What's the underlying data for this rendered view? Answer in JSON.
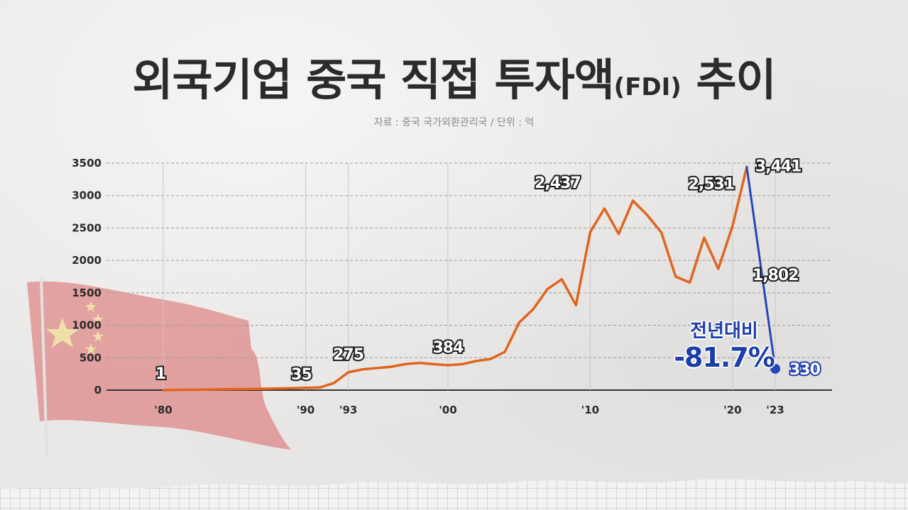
{
  "header": {
    "title_main": "외국기업 중국 직접 투자액",
    "title_fdi": "(FDI)",
    "title_end": " 추이",
    "source": "자료 : 중국 국가외환관리국 / 단위 : 억"
  },
  "annotation": {
    "yoy_label": "전년대비",
    "yoy_value": "-81.7%"
  },
  "colors": {
    "series_main": "#e0641e",
    "series_drop": "#2546b8",
    "gridline": "#9a9a9a",
    "axis": "#333333"
  },
  "icons": {
    "flag": "china-flag-icon"
  },
  "chart_data": {
    "type": "line",
    "title": "외국기업 중국 직접 투자액(FDI) 추이",
    "ylim": [
      0,
      3500
    ],
    "yticks": [
      0,
      500,
      1000,
      1500,
      2000,
      2500,
      3000,
      3500
    ],
    "yticks_labels": [
      "0",
      "500",
      "1000",
      "1500",
      "2000",
      "2500",
      "3000",
      "3500"
    ],
    "xlim": [
      1980,
      2023
    ],
    "xticks": [
      {
        "x": 1980,
        "label": "'80"
      },
      {
        "x": 1990,
        "label": "'90"
      },
      {
        "x": 1993,
        "label": "'93"
      },
      {
        "x": 2000,
        "label": "'00"
      },
      {
        "x": 2010,
        "label": "'10"
      },
      {
        "x": 2020,
        "label": "'20"
      },
      {
        "x": 2023,
        "label": "'23"
      }
    ],
    "grid": true,
    "series": [
      {
        "x": [
          1980,
          1982,
          1984,
          1986,
          1988,
          1989,
          1990,
          1991,
          1992,
          1993,
          1994,
          1995,
          1996,
          1997,
          1998,
          1999,
          2000,
          2001,
          2002,
          2003,
          2004,
          2005,
          2006,
          2007,
          2008,
          2009,
          2010,
          2011,
          2012,
          2013,
          2014,
          2015,
          2016,
          2017,
          2018,
          2019,
          2020,
          2021
        ],
        "values": [
          1,
          5,
          12,
          18,
          25,
          30,
          35,
          40,
          110,
          275,
          320,
          340,
          360,
          400,
          420,
          400,
          384,
          400,
          450,
          480,
          590,
          1040,
          1250,
          1560,
          1710,
          1310,
          2437,
          2800,
          2410,
          2920,
          2700,
          2430,
          1750,
          1660,
          2350,
          1870,
          2531,
          3441
        ],
        "color": "#e0641e"
      },
      {
        "x": [
          2021,
          2023
        ],
        "values": [
          3441,
          330
        ],
        "color": "#2546b8"
      }
    ],
    "data_labels": [
      {
        "x": 1980,
        "y": 1,
        "text": "1"
      },
      {
        "x": 1990,
        "y": 35,
        "text": "35"
      },
      {
        "x": 1993,
        "y": 275,
        "text": "275"
      },
      {
        "x": 2000,
        "y": 384,
        "text": "384"
      },
      {
        "x": 2010,
        "y": 2437,
        "text": "2,437"
      },
      {
        "x": 2020,
        "y": 2531,
        "text": "2,531"
      },
      {
        "x": 2021,
        "y": 3441,
        "text": "3,441"
      },
      {
        "x": 2022,
        "y": 1802,
        "text": "1,802"
      },
      {
        "x": 2023,
        "y": 330,
        "text": "330"
      }
    ]
  }
}
